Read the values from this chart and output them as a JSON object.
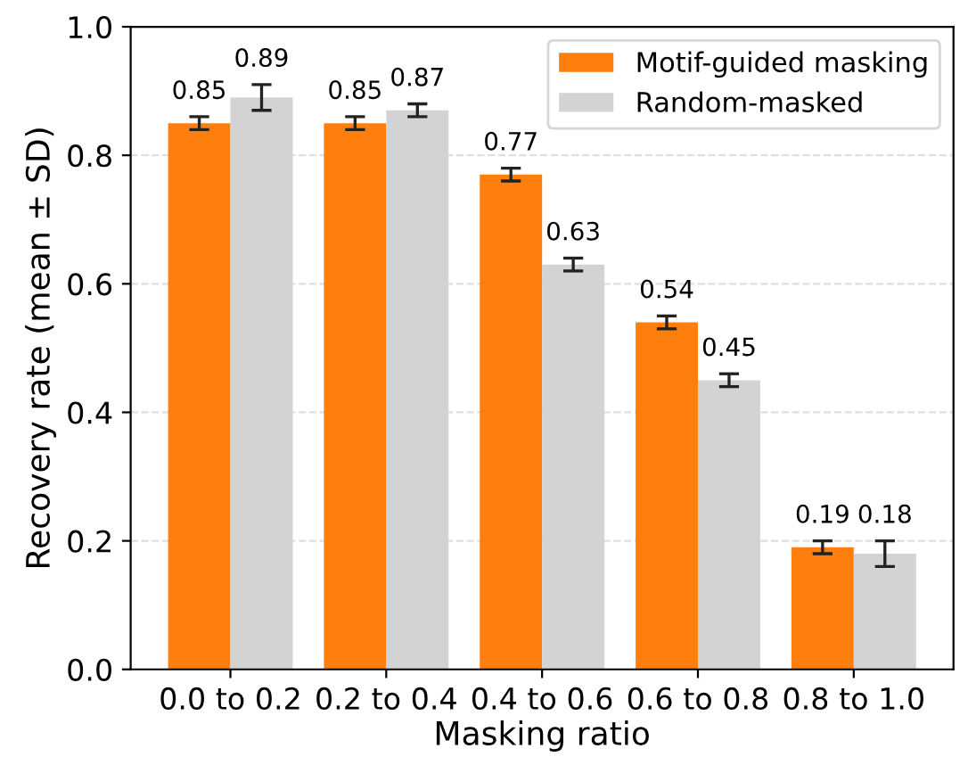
{
  "chart_data": {
    "type": "bar",
    "xlabel": "Masking ratio",
    "ylabel": "Recovery rate (mean ± SD)",
    "categories": [
      "0.0 to 0.2",
      "0.2 to 0.4",
      "0.4 to 0.6",
      "0.6 to 0.8",
      "0.8 to 1.0"
    ],
    "series": [
      {
        "name": "Motif-guided masking",
        "color": "#ff7f0e",
        "values": [
          0.85,
          0.85,
          0.77,
          0.54,
          0.19
        ],
        "errors": [
          0.01,
          0.01,
          0.01,
          0.01,
          0.01
        ]
      },
      {
        "name": "Random-masked",
        "color": "#d3d3d3",
        "values": [
          0.89,
          0.87,
          0.63,
          0.45,
          0.18
        ],
        "errors": [
          0.02,
          0.01,
          0.01,
          0.01,
          0.02
        ]
      }
    ],
    "ylim": [
      0,
      1.0
    ],
    "yticks": [
      {
        "value": 0,
        "label": "0.0"
      },
      0.2,
      0.4,
      0.6,
      0.8,
      {
        "value": 1,
        "label": "1.0"
      }
    ],
    "grid": "y",
    "legend": "top right",
    "data_labels": true
  }
}
